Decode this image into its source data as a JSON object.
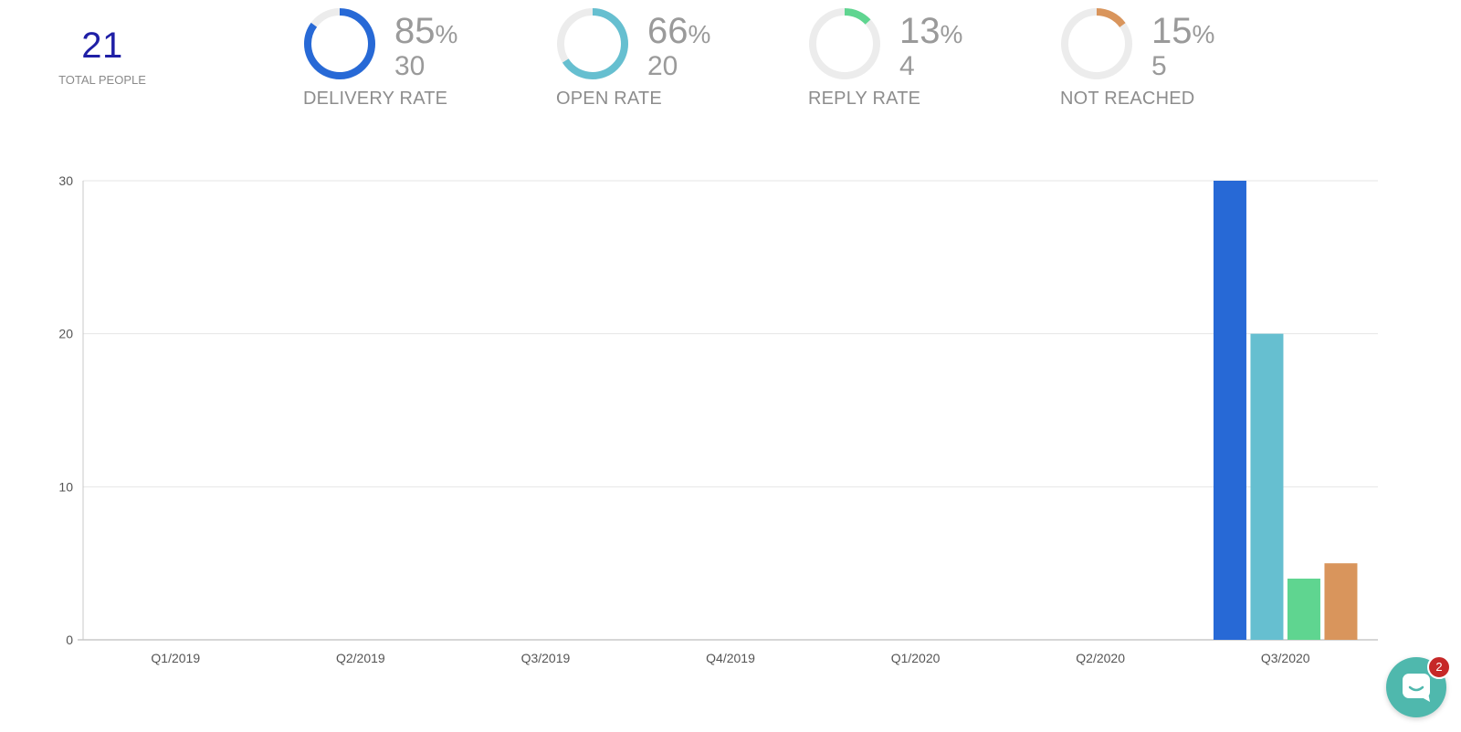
{
  "summary": {
    "total_people": "21",
    "total_people_label": "TOTAL PEOPLE"
  },
  "stats": [
    {
      "label": "DELIVERY RATE",
      "percent": "85",
      "percent_sign": "%",
      "count": "30",
      "fraction": 0.85,
      "color": "#2769d6"
    },
    {
      "label": "OPEN RATE",
      "percent": "66",
      "percent_sign": "%",
      "count": "20",
      "fraction": 0.66,
      "color": "#66bfd0"
    },
    {
      "label": "REPLY RATE",
      "percent": "13",
      "percent_sign": "%",
      "count": "4",
      "fraction": 0.13,
      "color": "#5fd590"
    },
    {
      "label": "NOT REACHED",
      "percent": "15",
      "percent_sign": "%",
      "count": "5",
      "fraction": 0.15,
      "color": "#d9955c"
    }
  ],
  "colors": {
    "ring_track": "#ececec",
    "grid": "#e6e6e6",
    "axis": "#c8c8c8"
  },
  "chart_data": {
    "type": "bar",
    "categories": [
      "Q1/2019",
      "Q2/2019",
      "Q3/2019",
      "Q4/2019",
      "Q1/2020",
      "Q2/2020",
      "Q3/2020"
    ],
    "series": [
      {
        "values": [
          0,
          0,
          0,
          0,
          0,
          0,
          30
        ],
        "color": "#2769d6"
      },
      {
        "values": [
          0,
          0,
          0,
          0,
          0,
          0,
          20
        ],
        "color": "#66bfd0"
      },
      {
        "values": [
          0,
          0,
          0,
          0,
          0,
          0,
          4
        ],
        "color": "#5fd590"
      },
      {
        "values": [
          0,
          0,
          0,
          0,
          0,
          0,
          5
        ],
        "color": "#d9955c"
      }
    ],
    "yticks": [
      0,
      10,
      20,
      30
    ],
    "ylim": [
      0,
      30
    ],
    "grid": true,
    "legend": "none"
  },
  "chat": {
    "badge_count": "2",
    "icon": "chat-bubble-icon"
  }
}
